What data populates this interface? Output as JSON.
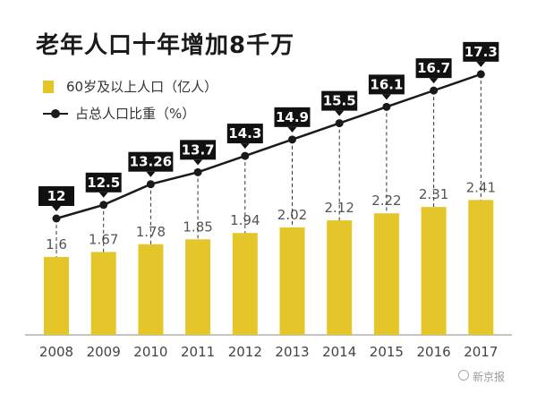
{
  "title": "老年人口十年增加8千万",
  "legend": {
    "bar_label": "60岁及以上人口（亿人）",
    "line_label": "占总人口比重（%）"
  },
  "colors": {
    "bar": "#e5c62a",
    "line": "#1a1a1a",
    "callout": "#111111",
    "callout_text": "#ffffff"
  },
  "watermark": "新京报",
  "chart_data": {
    "type": "bar",
    "title": "老年人口十年增加8千万",
    "categories": [
      "2008",
      "2009",
      "2010",
      "2011",
      "2012",
      "2013",
      "2014",
      "2015",
      "2016",
      "2017"
    ],
    "series": [
      {
        "name": "60岁及以上人口（亿人）",
        "type": "bar",
        "values": [
          1.6,
          1.67,
          1.78,
          1.85,
          1.94,
          2.02,
          2.12,
          2.22,
          2.31,
          2.41
        ],
        "labels": [
          "1.6",
          "1.67",
          "1.78",
          "1.85",
          "1.94",
          "2.02",
          "2.12",
          "2.22",
          "2.31",
          "2.41"
        ]
      },
      {
        "name": "占总人口比重（%）",
        "type": "line",
        "values": [
          12,
          12.5,
          13.26,
          13.7,
          14.3,
          14.9,
          15.5,
          16.1,
          16.7,
          17.3
        ],
        "labels": [
          "12",
          "12.5",
          "13.26",
          "13.7",
          "14.3",
          "14.9",
          "15.5",
          "16.1",
          "16.7",
          "17.3"
        ]
      }
    ],
    "grid": false,
    "legend_position": "top-left"
  }
}
